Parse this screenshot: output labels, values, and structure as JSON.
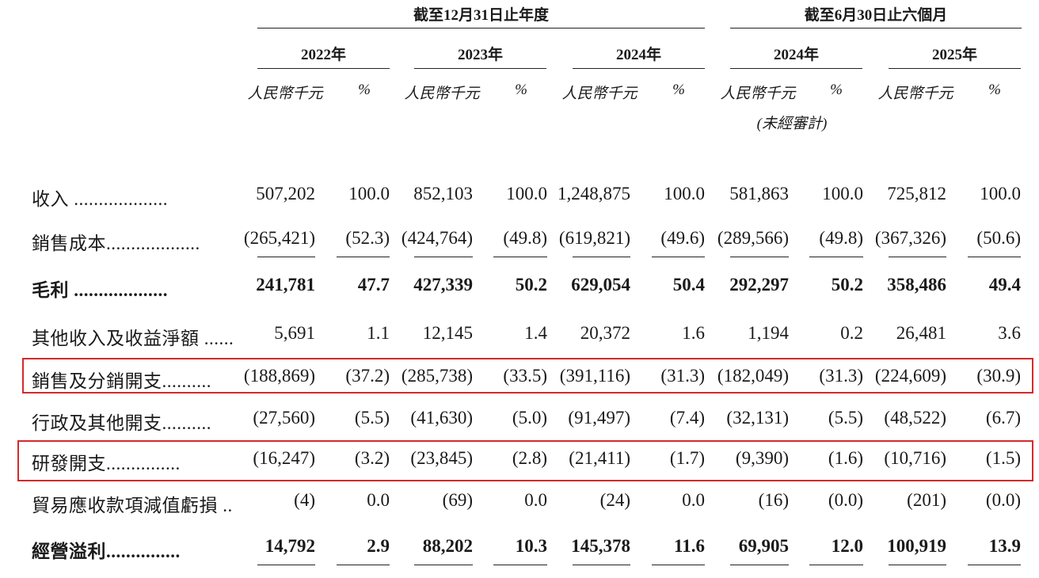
{
  "header": {
    "group1_title": "截至12月31日止年度",
    "group2_title": "截至6月30日止六個月",
    "years": [
      "2022年",
      "2023年",
      "2024年",
      "2024年",
      "2025年"
    ],
    "unit_amount": "人民幣千元",
    "unit_pct": "%",
    "unaudited_note": "(未經審計)"
  },
  "rows": [
    {
      "label": "收入 ...................",
      "bold": false,
      "values": [
        "507,202",
        "100.0",
        "852,103",
        "100.0",
        "1,248,875",
        "100.0",
        "581,863",
        "100.0",
        "725,812",
        "100.0"
      ]
    },
    {
      "label": "銷售成本...................",
      "bold": false,
      "values": [
        "(265,421)",
        "(52.3)",
        "(424,764)",
        "(49.8)",
        "(619,821)",
        "(49.6)",
        "(289,566)",
        "(49.8)",
        "(367,326)",
        "(50.6)"
      ]
    },
    {
      "label": "毛利 ...................",
      "bold": true,
      "values": [
        "241,781",
        "47.7",
        "427,339",
        "50.2",
        "629,054",
        "50.4",
        "292,297",
        "50.2",
        "358,486",
        "49.4"
      ]
    },
    {
      "label": "其他收入及收益淨額 ......",
      "bold": false,
      "values": [
        "5,691",
        "1.1",
        "12,145",
        "1.4",
        "20,372",
        "1.6",
        "1,194",
        "0.2",
        "26,481",
        "3.6"
      ]
    },
    {
      "label": "銷售及分銷開支..........",
      "bold": false,
      "values": [
        "(188,869)",
        "(37.2)",
        "(285,738)",
        "(33.5)",
        "(391,116)",
        "(31.3)",
        "(182,049)",
        "(31.3)",
        "(224,609)",
        "(30.9)"
      ]
    },
    {
      "label": "行政及其他開支..........",
      "bold": false,
      "values": [
        "(27,560)",
        "(5.5)",
        "(41,630)",
        "(5.0)",
        "(91,497)",
        "(7.4)",
        "(32,131)",
        "(5.5)",
        "(48,522)",
        "(6.7)"
      ]
    },
    {
      "label": "研發開支...............",
      "bold": false,
      "values": [
        "(16,247)",
        "(3.2)",
        "(23,845)",
        "(2.8)",
        "(21,411)",
        "(1.7)",
        "(9,390)",
        "(1.6)",
        "(10,716)",
        "(1.5)"
      ]
    },
    {
      "label": "貿易應收款項減值虧損 ....",
      "bold": false,
      "values": [
        "(4)",
        "0.0",
        "(69)",
        "0.0",
        "(24)",
        "0.0",
        "(16)",
        "(0.0)",
        "(201)",
        "(0.0)"
      ]
    },
    {
      "label": "經營溢利...............",
      "bold": true,
      "values": [
        "14,792",
        "2.9",
        "88,202",
        "10.3",
        "145,378",
        "11.6",
        "69,905",
        "12.0",
        "100,919",
        "13.9"
      ]
    }
  ],
  "highlighted_rows": [
    "銷售及分銷開支",
    "研發開支"
  ],
  "colors": {
    "highlight_border": "#d42a2a",
    "text": "#1a1a1a"
  }
}
